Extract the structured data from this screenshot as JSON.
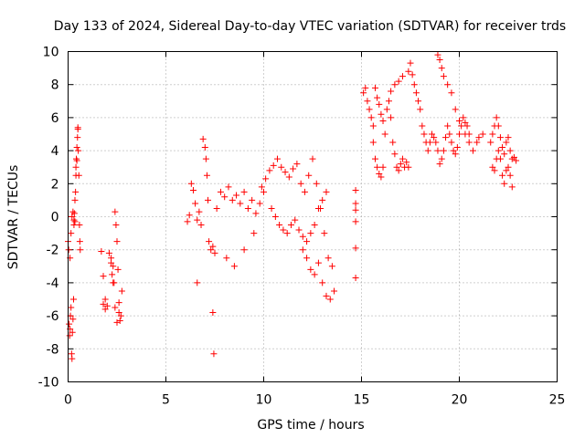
{
  "chart_data": {
    "type": "scatter",
    "title": "Day 133 of 2024, Sidereal Day-to-day VTEC variation (SDTVAR) for receiver trds",
    "xlabel": "GPS time / hours",
    "ylabel": "SDTVAR / TECUs",
    "xlim": [
      0,
      25
    ],
    "ylim": [
      -10,
      10
    ],
    "xticks": [
      0,
      5,
      10,
      15,
      20,
      25
    ],
    "yticks": [
      -10,
      -8,
      -6,
      -4,
      -2,
      0,
      2,
      4,
      6,
      8,
      10
    ],
    "grid": true,
    "marker": "+",
    "color": "#ff0000",
    "series": [
      {
        "name": "SDTVAR",
        "x": [
          0.0,
          0.03,
          0.05,
          0.08,
          0.1,
          0.12,
          0.15,
          0.18,
          0.2,
          0.22,
          0.25,
          0.28,
          0.3,
          0.32,
          0.35,
          0.38,
          0.4,
          0.42,
          0.45,
          0.48,
          0.5,
          0.52,
          0.55,
          0.58,
          0.6,
          0.62,
          0.1,
          0.15,
          0.2,
          0.25,
          0.3,
          0.35,
          0.4,
          0.45,
          0.5,
          1.7,
          1.8,
          1.9,
          2.0,
          2.1,
          2.2,
          2.25,
          2.3,
          2.35,
          2.4,
          2.45,
          2.5,
          2.55,
          2.6,
          2.65,
          2.7,
          2.75,
          2.2,
          2.3,
          2.4,
          2.5,
          2.6,
          1.8,
          1.9,
          6.1,
          6.2,
          6.3,
          6.4,
          6.5,
          6.6,
          6.7,
          6.8,
          6.9,
          7.0,
          7.05,
          7.1,
          7.15,
          7.2,
          7.3,
          7.4,
          7.5,
          6.6,
          7.4,
          7.45,
          7.6,
          7.8,
          8.0,
          8.2,
          8.4,
          8.6,
          8.8,
          9.0,
          9.2,
          9.4,
          9.6,
          9.8,
          10.0,
          8.1,
          8.5,
          9.0,
          9.5,
          9.9,
          10.1,
          10.3,
          10.5,
          10.7,
          10.9,
          11.1,
          11.3,
          11.5,
          11.7,
          11.9,
          12.1,
          12.3,
          12.5,
          12.7,
          12.9,
          13.1,
          13.3,
          13.5,
          10.4,
          10.6,
          10.8,
          11.0,
          11.2,
          11.4,
          11.6,
          11.8,
          12.0,
          12.2,
          12.4,
          12.6,
          12.8,
          13.0,
          13.2,
          12.0,
          12.2,
          12.4,
          12.6,
          12.8,
          13.0,
          13.2,
          13.4,
          13.6,
          14.7,
          14.7,
          14.7,
          14.7,
          14.7,
          14.7,
          15.1,
          15.2,
          15.3,
          15.4,
          15.5,
          15.6,
          15.7,
          15.8,
          15.9,
          16.0,
          16.1,
          16.2,
          16.3,
          16.4,
          16.5,
          16.6,
          16.7,
          16.8,
          16.9,
          17.0,
          17.1,
          17.2,
          17.3,
          17.4,
          15.6,
          15.7,
          15.8,
          15.9,
          16.0,
          16.1,
          16.5,
          16.7,
          16.9,
          17.1,
          17.4,
          17.5,
          17.6,
          17.7,
          17.8,
          17.9,
          18.0,
          18.1,
          18.2,
          18.3,
          18.4,
          18.5,
          18.6,
          18.7,
          18.8,
          18.9,
          19.0,
          19.1,
          19.2,
          19.3,
          19.4,
          19.5,
          19.6,
          19.7,
          19.8,
          19.9,
          20.0,
          20.1,
          20.2,
          20.3,
          20.4,
          20.5,
          18.9,
          19.0,
          19.1,
          19.2,
          19.4,
          19.6,
          19.8,
          20.0,
          20.3,
          20.5,
          20.7,
          20.9,
          21.0,
          21.2,
          21.6,
          21.7,
          21.8,
          21.9,
          22.0,
          22.1,
          22.2,
          22.3,
          22.4,
          22.5,
          22.6,
          22.7,
          22.8,
          22.9,
          21.7,
          21.8,
          21.9,
          22.0,
          22.1,
          22.2,
          22.3,
          22.4,
          22.5,
          22.6,
          22.7
        ],
        "y": [
          -1.5,
          -2.0,
          -6.5,
          -7.2,
          -6.8,
          -6.0,
          -5.5,
          -8.3,
          -8.6,
          -7.0,
          -6.2,
          -5.0,
          -0.5,
          0.2,
          -0.3,
          1.5,
          3.0,
          3.5,
          4.2,
          4.8,
          5.3,
          4.0,
          2.5,
          -0.5,
          -1.5,
          -2.0,
          -2.5,
          -1.0,
          0.0,
          0.3,
          -0.2,
          1.0,
          2.5,
          3.4,
          5.4,
          -2.1,
          -3.6,
          -5.0,
          -5.4,
          -2.2,
          -2.8,
          -3.5,
          -3.0,
          -4.0,
          0.3,
          -0.5,
          -1.5,
          -3.2,
          -5.8,
          -6.3,
          -6.0,
          -4.5,
          -2.5,
          -4.0,
          -5.5,
          -6.4,
          -5.2,
          -5.3,
          -5.6,
          -0.3,
          0.1,
          2.0,
          1.6,
          0.8,
          -0.2,
          0.3,
          -0.5,
          4.7,
          4.2,
          3.5,
          2.5,
          1.0,
          -1.5,
          -2.0,
          -1.8,
          -2.2,
          -4.0,
          -5.8,
          -8.3,
          0.5,
          1.5,
          1.2,
          1.8,
          1.0,
          1.3,
          0.8,
          1.5,
          0.5,
          1.0,
          0.2,
          0.8,
          1.5,
          -2.5,
          -3.0,
          -2.0,
          -1.0,
          1.8,
          2.3,
          2.8,
          3.1,
          3.5,
          3.0,
          2.7,
          2.4,
          2.9,
          3.2,
          2.0,
          1.5,
          2.5,
          3.5,
          2.0,
          0.5,
          -1.0,
          -2.5,
          -3.0,
          0.5,
          0.0,
          -0.5,
          -0.8,
          -1.0,
          -0.5,
          -0.2,
          -0.8,
          -1.2,
          -1.5,
          -1.0,
          -0.5,
          0.5,
          1.0,
          1.5,
          -2.0,
          -2.5,
          -3.2,
          -3.5,
          -2.8,
          -4.0,
          -4.8,
          -5.0,
          -4.5,
          1.6,
          0.8,
          0.4,
          -0.3,
          -1.9,
          -3.7,
          7.5,
          7.8,
          7.0,
          6.5,
          6.0,
          5.5,
          7.8,
          7.2,
          6.8,
          6.2,
          5.8,
          5.0,
          6.5,
          7.0,
          6.0,
          4.5,
          3.8,
          3.0,
          2.8,
          3.2,
          3.5,
          3.0,
          3.3,
          3.0,
          4.5,
          3.5,
          3.0,
          2.6,
          2.4,
          3.0,
          7.6,
          8.0,
          8.2,
          8.5,
          8.8,
          9.3,
          8.6,
          8.0,
          7.5,
          7.0,
          6.5,
          5.5,
          5.0,
          4.5,
          4.0,
          4.5,
          5.0,
          4.8,
          4.5,
          4.0,
          3.2,
          3.5,
          4.0,
          4.8,
          5.5,
          5.0,
          4.5,
          4.0,
          3.8,
          4.2,
          5.0,
          5.5,
          6.0,
          5.7,
          5.5,
          5.0,
          9.8,
          9.5,
          9.0,
          8.5,
          8.0,
          7.5,
          6.5,
          5.8,
          5.0,
          4.5,
          4.0,
          4.5,
          4.8,
          5.0,
          4.5,
          5.0,
          5.5,
          6.0,
          5.5,
          4.8,
          4.2,
          3.8,
          4.5,
          4.8,
          4.0,
          3.5,
          3.6,
          3.4,
          3.0,
          2.8,
          3.5,
          4.0,
          3.5,
          2.5,
          2.0,
          2.8,
          3.0,
          2.5,
          1.8
        ]
      }
    ]
  }
}
